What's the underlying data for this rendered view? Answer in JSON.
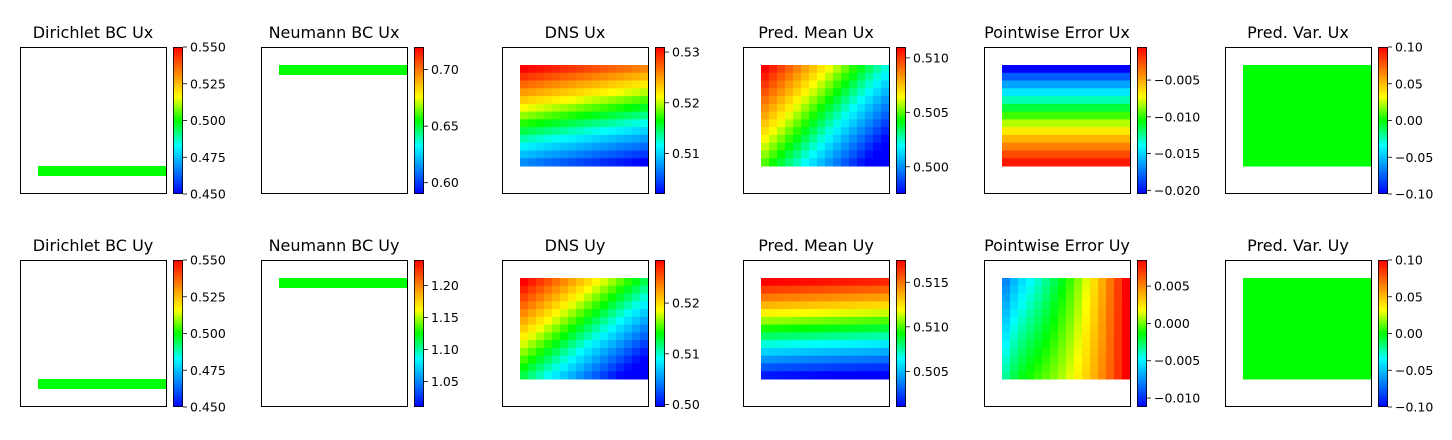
{
  "chart_data": [
    {
      "title": "Dirichlet BC Ux",
      "type": "heatmap",
      "kind": "bc",
      "colorbar": {
        "vmin": 0.45,
        "vmax": 0.55,
        "ticks": [
          "0.450",
          "0.475",
          "0.500",
          "0.525",
          "0.550"
        ]
      },
      "bc_value": 0.5,
      "bc_row": "bottom"
    },
    {
      "title": "Neumann BC Ux",
      "type": "heatmap",
      "kind": "bc",
      "colorbar": {
        "vmin": 0.59,
        "vmax": 0.72,
        "ticks": [
          "0.60",
          "0.65",
          "0.70"
        ]
      },
      "bc_value": 0.655,
      "bc_row": "top"
    },
    {
      "title": "DNS Ux",
      "type": "heatmap",
      "kind": "field",
      "pattern": "dns_ux",
      "colorbar": {
        "vmin": 0.502,
        "vmax": 0.531,
        "ticks": [
          "0.51",
          "0.52",
          "0.53"
        ]
      }
    },
    {
      "title": "Pred. Mean Ux",
      "type": "heatmap",
      "kind": "field",
      "pattern": "mean_ux",
      "colorbar": {
        "vmin": 0.4975,
        "vmax": 0.511,
        "ticks": [
          "0.500",
          "0.505",
          "0.510"
        ]
      }
    },
    {
      "title": "Pointwise Error Ux",
      "type": "heatmap",
      "kind": "field",
      "pattern": "err_ux",
      "colorbar": {
        "vmin": -0.0205,
        "vmax": -0.0005,
        "ticks": [
          "−0.020",
          "−0.015",
          "−0.010",
          "−0.005"
        ]
      }
    },
    {
      "title": "Pred. Var. Ux",
      "type": "heatmap",
      "kind": "field",
      "pattern": "const",
      "colorbar": {
        "vmin": -0.1,
        "vmax": 0.1,
        "ticks": [
          "−0.10",
          "−0.05",
          "0.00",
          "0.05",
          "0.10"
        ]
      }
    },
    {
      "title": "Dirichlet BC Uy",
      "type": "heatmap",
      "kind": "bc",
      "colorbar": {
        "vmin": 0.45,
        "vmax": 0.55,
        "ticks": [
          "0.450",
          "0.475",
          "0.500",
          "0.525",
          "0.550"
        ]
      },
      "bc_value": 0.5,
      "bc_row": "bottom"
    },
    {
      "title": "Neumann BC Uy",
      "type": "heatmap",
      "kind": "bc",
      "colorbar": {
        "vmin": 1.01,
        "vmax": 1.24,
        "ticks": [
          "1.05",
          "1.10",
          "1.15",
          "1.20"
        ]
      },
      "bc_value": 1.125,
      "bc_row": "top"
    },
    {
      "title": "DNS Uy",
      "type": "heatmap",
      "kind": "field",
      "pattern": "dns_uy",
      "colorbar": {
        "vmin": 0.4995,
        "vmax": 0.5285,
        "ticks": [
          "0.50",
          "0.51",
          "0.52"
        ]
      }
    },
    {
      "title": "Pred. Mean Uy",
      "type": "heatmap",
      "kind": "field",
      "pattern": "mean_uy",
      "colorbar": {
        "vmin": 0.501,
        "vmax": 0.5175,
        "ticks": [
          "0.505",
          "0.510",
          "0.515"
        ]
      }
    },
    {
      "title": "Pointwise Error Uy",
      "type": "heatmap",
      "kind": "field",
      "pattern": "err_uy",
      "colorbar": {
        "vmin": -0.0112,
        "vmax": 0.0085,
        "ticks": [
          "−0.010",
          "−0.005",
          "0.000",
          "0.005"
        ]
      }
    },
    {
      "title": "Pred. Var. Uy",
      "type": "heatmap",
      "kind": "field",
      "pattern": "const",
      "colorbar": {
        "vmin": -0.1,
        "vmax": 0.1,
        "ticks": [
          "−0.10",
          "−0.05",
          "0.00",
          "0.05",
          "0.10"
        ]
      }
    }
  ]
}
